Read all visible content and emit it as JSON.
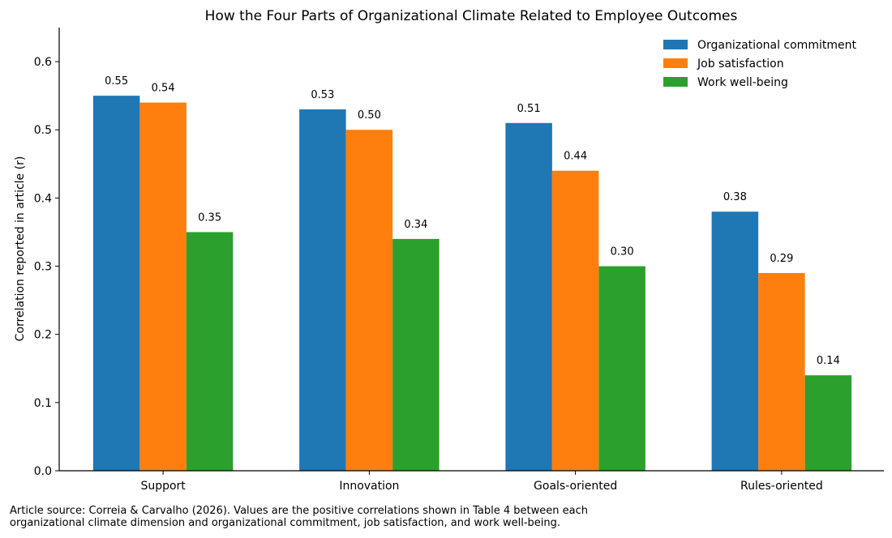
{
  "chart_data": {
    "type": "bar",
    "title": "How the Four Parts of Organizational Climate Related to Employee Outcomes",
    "xlabel": "",
    "ylabel": "Correlation reported in article (r)",
    "categories": [
      "Support",
      "Innovation",
      "Goals-oriented",
      "Rules-oriented"
    ],
    "series": [
      {
        "name": "Organizational commitment",
        "color": "#1f77b4",
        "values": [
          0.55,
          0.53,
          0.51,
          0.38
        ],
        "labels": [
          "0.55",
          "0.53",
          "0.51",
          "0.38"
        ]
      },
      {
        "name": "Job satisfaction",
        "color": "#ff7f0e",
        "values": [
          0.54,
          0.5,
          0.44,
          0.29
        ],
        "labels": [
          "0.54",
          "0.50",
          "0.44",
          "0.29"
        ]
      },
      {
        "name": "Work well-being",
        "color": "#2ca02c",
        "values": [
          0.35,
          0.34,
          0.3,
          0.14
        ],
        "labels": [
          "0.35",
          "0.34",
          "0.30",
          "0.14"
        ]
      }
    ],
    "ylim": [
      0,
      0.65
    ],
    "yticks": [
      "0.0",
      "0.1",
      "0.2",
      "0.3",
      "0.4",
      "0.5",
      "0.6"
    ],
    "grid": false,
    "legend_position": "top-right"
  },
  "caption": {
    "line1": "Article source: Correia & Carvalho (2026). Values are the positive correlations shown in Table 4 between each",
    "line2": "organizational climate dimension and organizational commitment, job satisfaction, and work well-being."
  }
}
